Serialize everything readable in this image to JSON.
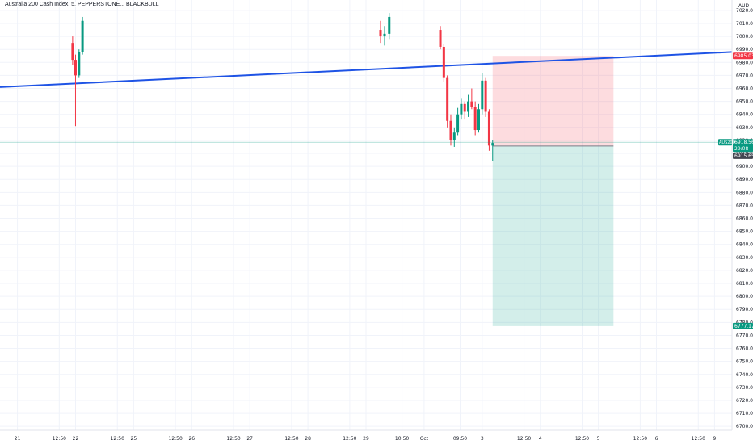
{
  "chart_title": "Australia 200 Cash Index, 5, PEPPERSTONE... BLACKBULL",
  "currency": "AUD",
  "chart_data": {
    "type": "candlestick",
    "title": "Australia 200 Cash Index",
    "symbol": "AUS200",
    "interval": "5",
    "y_axis_ticks": [
      7020,
      7010,
      7000,
      6990,
      6980,
      6970,
      6960,
      6950,
      6940,
      6930,
      6920,
      6910,
      6900,
      6890,
      6880,
      6870,
      6860,
      6850,
      6840,
      6830,
      6820,
      6810,
      6800,
      6790,
      6780,
      6770,
      6760,
      6750,
      6740,
      6730,
      6720,
      6710,
      6700
    ],
    "x_axis_labels": [
      "21",
      "12:50",
      "22",
      "12:50",
      "25",
      "12:50",
      "26",
      "12:50",
      "27",
      "12:50",
      "28",
      "12:50",
      "29",
      "10:50",
      "Oct",
      "09:50",
      "3",
      "12:50",
      "4",
      "12:50",
      "5",
      "12:50",
      "6",
      "12:50",
      "9"
    ],
    "x_axis_label_positions": [
      0.3,
      1.02,
      1.3,
      2.02,
      2.3,
      3.02,
      3.3,
      4.02,
      4.3,
      5.02,
      5.3,
      6.02,
      6.3,
      6.92,
      7.3,
      7.92,
      8.3,
      9.02,
      9.3,
      10.02,
      10.3,
      11.02,
      11.3,
      12.02,
      12.3
    ],
    "y_range": [
      6697,
      7028
    ],
    "x_range": [
      0,
      12.6
    ],
    "candles": [
      {
        "t": 1.25,
        "o": 6995,
        "h": 7000,
        "l": 6978,
        "c": 6982
      },
      {
        "t": 1.3,
        "o": 6982,
        "h": 6986,
        "l": 6931,
        "c": 6970
      },
      {
        "t": 1.36,
        "o": 6970,
        "h": 6990,
        "l": 6968,
        "c": 6988
      },
      {
        "t": 1.42,
        "o": 6988,
        "h": 7015,
        "l": 6986,
        "c": 7012
      },
      {
        "t": 6.55,
        "o": 7005,
        "h": 7012,
        "l": 6995,
        "c": 7000
      },
      {
        "t": 6.62,
        "o": 7000,
        "h": 7008,
        "l": 6993,
        "c": 7002
      },
      {
        "t": 6.7,
        "o": 7002,
        "h": 7018,
        "l": 6998,
        "c": 7015
      },
      {
        "t": 7.58,
        "o": 7005,
        "h": 7008,
        "l": 6990,
        "c": 6992
      },
      {
        "t": 7.64,
        "o": 6992,
        "h": 6994,
        "l": 6965,
        "c": 6968
      },
      {
        "t": 7.7,
        "o": 6968,
        "h": 6970,
        "l": 6930,
        "c": 6935
      },
      {
        "t": 7.76,
        "o": 6935,
        "h": 6940,
        "l": 6916,
        "c": 6920
      },
      {
        "t": 7.82,
        "o": 6920,
        "h": 6930,
        "l": 6915,
        "c": 6926
      },
      {
        "t": 7.88,
        "o": 6926,
        "h": 6945,
        "l": 6924,
        "c": 6940
      },
      {
        "t": 7.94,
        "o": 6940,
        "h": 6952,
        "l": 6936,
        "c": 6948
      },
      {
        "t": 8.0,
        "o": 6948,
        "h": 6950,
        "l": 6936,
        "c": 6942
      },
      {
        "t": 8.06,
        "o": 6942,
        "h": 6955,
        "l": 6938,
        "c": 6950
      },
      {
        "t": 8.12,
        "o": 6950,
        "h": 6960,
        "l": 6944,
        "c": 6946
      },
      {
        "t": 8.18,
        "o": 6946,
        "h": 6950,
        "l": 6924,
        "c": 6928
      },
      {
        "t": 8.24,
        "o": 6928,
        "h": 6948,
        "l": 6926,
        "c": 6944
      },
      {
        "t": 8.3,
        "o": 6944,
        "h": 6972,
        "l": 6940,
        "c": 6966
      },
      {
        "t": 8.36,
        "o": 6966,
        "h": 6968,
        "l": 6938,
        "c": 6942
      },
      {
        "t": 8.42,
        "o": 6942,
        "h": 6944,
        "l": 6912,
        "c": 6916
      },
      {
        "t": 8.48,
        "o": 6916,
        "h": 6920,
        "l": 6904,
        "c": 6918
      }
    ],
    "trendline": {
      "t1": 0,
      "p1": 6961,
      "t2": 12.6,
      "p2": 6988,
      "color": "#1e53e5"
    },
    "position": {
      "t_start": 8.48,
      "t_end": 10.56,
      "entry": 6915.65,
      "stop": 6985.03,
      "target": 6777.17,
      "loss_color": "#f7525f",
      "profit_color": "#22ab94"
    },
    "current_price_line": 6918.56,
    "price_labels": {
      "stop": "6985.03",
      "last": "6918.56",
      "countdown": "29:08",
      "entry": "6915.65",
      "target": "6777.17",
      "symbol": "AUS200"
    },
    "colors": {
      "up": "#089981",
      "down": "#f23645",
      "grid": "#f0f3fa",
      "axis_text": "#131722"
    }
  }
}
